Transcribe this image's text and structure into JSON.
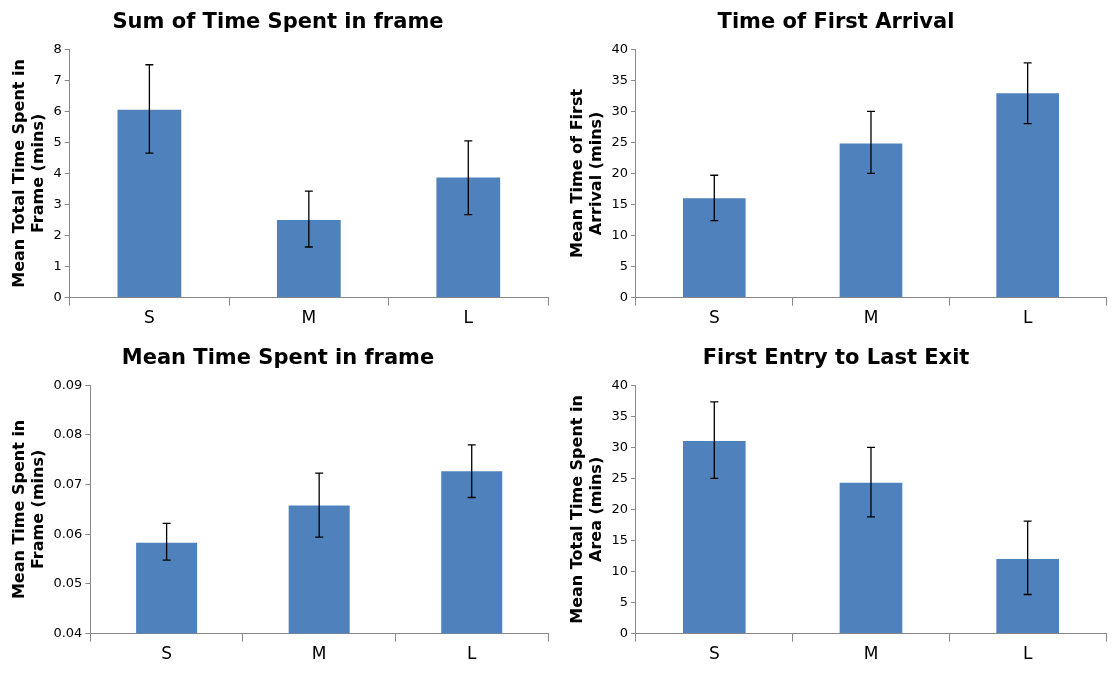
{
  "chart_data": [
    {
      "type": "bar",
      "title": "Sum of Time Spent in frame",
      "ylabel": "Mean Total Time Spent in Frame (mins)",
      "categories": [
        "S",
        "M",
        "L"
      ],
      "values": [
        6.05,
        2.5,
        3.87
      ],
      "errors": [
        [
          4.65,
          7.5
        ],
        [
          1.63,
          3.43
        ],
        [
          2.67,
          5.05
        ]
      ],
      "color": "#4f81bd",
      "ylim": [
        0,
        8
      ],
      "yticks": [
        0,
        1,
        2,
        3,
        4,
        5,
        6,
        7,
        8
      ],
      "grid": false,
      "legend": false
    },
    {
      "type": "bar",
      "title": "Time of First Arrival",
      "ylabel": "Mean Time of First Arrival (mins)",
      "categories": [
        "S",
        "M",
        "L"
      ],
      "values": [
        16,
        24.8,
        32.9
      ],
      "errors": [
        [
          12.4,
          19.7
        ],
        [
          20,
          30
        ],
        [
          28,
          37.8
        ]
      ],
      "color": "#4f81bd",
      "ylim": [
        0,
        40
      ],
      "yticks": [
        0,
        5,
        10,
        15,
        20,
        25,
        30,
        35,
        40
      ],
      "grid": false,
      "legend": false
    },
    {
      "type": "bar",
      "title": "Mean Time Spent in frame",
      "ylabel": "Mean Time Spent in Frame (mins)",
      "categories": [
        "S",
        "M",
        "L"
      ],
      "values": [
        0.0583,
        0.0658,
        0.0727
      ],
      "errors": [
        [
          0.0548,
          0.0622
        ],
        [
          0.0594,
          0.0723
        ],
        [
          0.0674,
          0.078
        ]
      ],
      "color": "#4f81bd",
      "ylim": [
        0.04,
        0.09
      ],
      "yticks": [
        {
          "value": 0.04,
          "label": "0.04"
        },
        {
          "value": 0.05,
          "label": "0.05"
        },
        {
          "value": 0.06,
          "label": "0.06"
        },
        {
          "value": 0.07,
          "label": "0.07"
        },
        {
          "value": 0.08,
          "label": "0.08"
        },
        {
          "value": 0.09,
          "label": "0.09"
        }
      ],
      "grid": false,
      "legend": false
    },
    {
      "type": "bar",
      "title": "First Entry to Last Exit",
      "ylabel": "Mean Total Time Spent in Area (mins)",
      "categories": [
        "S",
        "M",
        "L"
      ],
      "values": [
        31,
        24.3,
        12
      ],
      "errors": [
        [
          25,
          37.3
        ],
        [
          18.8,
          30
        ],
        [
          6.3,
          18.1
        ]
      ],
      "color": "#4f81bd",
      "ylim": [
        0,
        40
      ],
      "yticks": [
        0,
        5,
        10,
        15,
        20,
        25,
        30,
        35,
        40
      ],
      "grid": false,
      "legend": false
    }
  ]
}
